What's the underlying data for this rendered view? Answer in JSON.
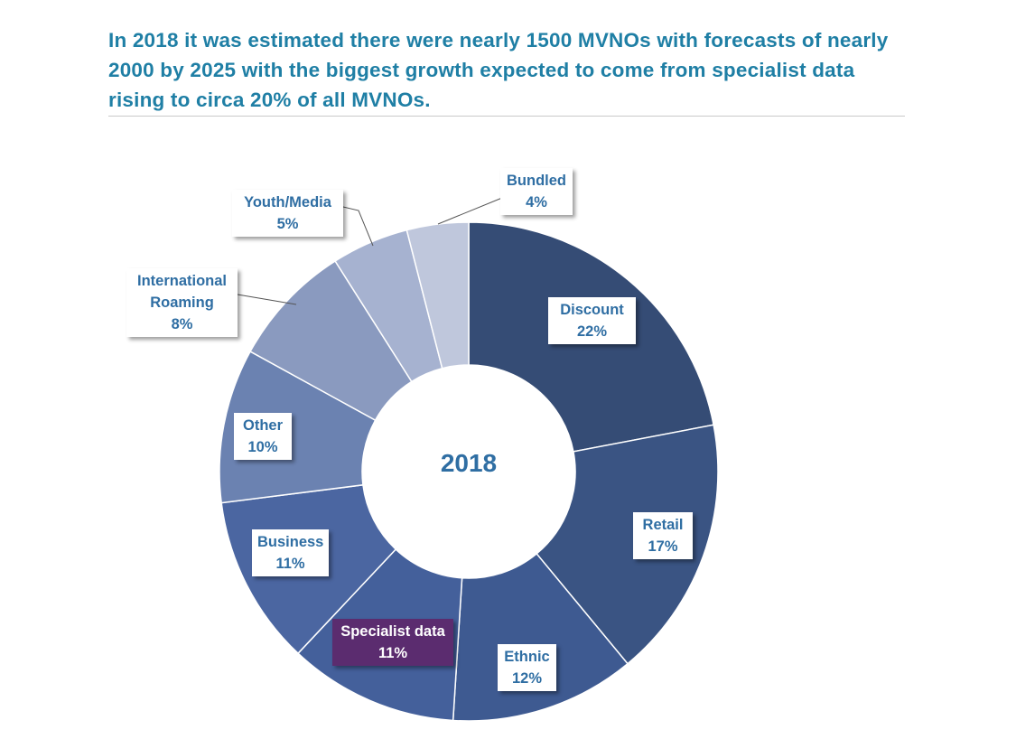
{
  "headline": "In 2018 it was estimated there were nearly 1500 MVNOs with forecasts of nearly 2000 by 2025 with the biggest growth expected to come from specialist data rising to circa 20% of all MVNOs.",
  "chart_data": {
    "type": "pie",
    "variant": "donut",
    "center_label": "2018",
    "slices": [
      {
        "label": "Discount",
        "value": 22,
        "value_label": "22%",
        "color": "#354c75"
      },
      {
        "label": "Retail",
        "value": 17,
        "value_label": "17%",
        "color": "#3a5483"
      },
      {
        "label": "Ethnic",
        "value": 12,
        "value_label": "12%",
        "color": "#3e5a91"
      },
      {
        "label": "Specialist data",
        "value": 11,
        "value_label": "11%",
        "color": "#44609b",
        "highlight_color": "#5b2c6f"
      },
      {
        "label": "Business",
        "value": 11,
        "value_label": "11%",
        "color": "#4b66a1"
      },
      {
        "label": "Other",
        "value": 10,
        "value_label": "10%",
        "color": "#6b82b1"
      },
      {
        "label": "International Roaming",
        "label_lines": [
          "International",
          "Roaming"
        ],
        "value": 8,
        "value_label": "8%",
        "color": "#8a9abf"
      },
      {
        "label": "Youth/Media",
        "value": 5,
        "value_label": "5%",
        "color": "#a6b2d0"
      },
      {
        "label": "Bundled",
        "value": 4,
        "value_label": "4%",
        "color": "#bfc7dc"
      }
    ]
  }
}
